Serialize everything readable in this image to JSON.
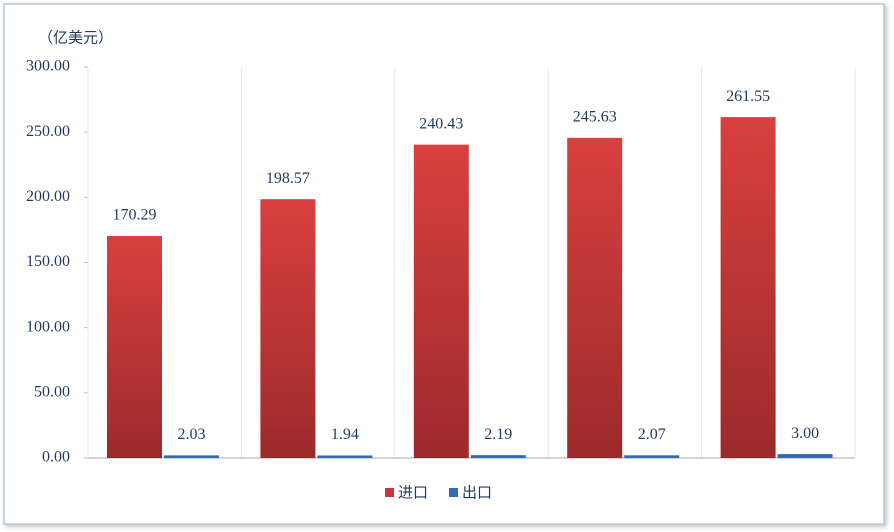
{
  "chart_data": {
    "type": "bar",
    "y_label": "（亿美元）",
    "categories": [
      null,
      null,
      null,
      null,
      null
    ],
    "series": [
      {
        "name": "进口",
        "color": "#c8353a",
        "values": [
          170.29,
          198.57,
          240.43,
          245.63,
          261.55
        ]
      },
      {
        "name": "出口",
        "color": "#2f6db3",
        "values": [
          2.03,
          1.94,
          2.19,
          2.07,
          3.0
        ],
        "value_labels": [
          "2.03",
          "1.94",
          "2.19",
          "2.07",
          "3.00"
        ]
      }
    ],
    "ylim": [
      0,
      300
    ],
    "yticks": [
      {
        "value": 0,
        "label": "0.00"
      },
      {
        "value": 50,
        "label": "50.00"
      },
      {
        "value": 100,
        "label": "100.00"
      },
      {
        "value": 150,
        "label": "150.00"
      },
      {
        "value": 200,
        "label": "200.00"
      },
      {
        "value": 250,
        "label": "250.00"
      },
      {
        "value": 300,
        "label": "300.00"
      }
    ],
    "grid": true,
    "legend": "bottom"
  }
}
